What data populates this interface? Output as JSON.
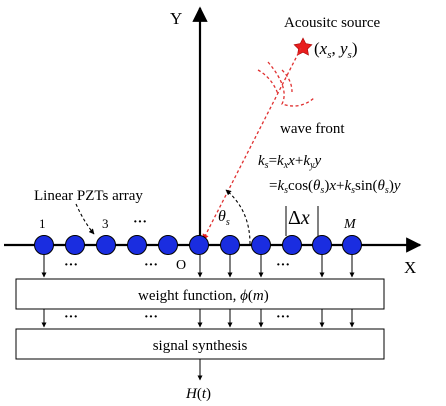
{
  "axes": {
    "x_label": "X",
    "y_label": "Y",
    "origin_label": "O"
  },
  "source": {
    "label": "Acousitc source",
    "coord_open": "(",
    "x": "x",
    "x_sub": "s",
    "sep": ", ",
    "y": "y",
    "y_sub": "s",
    "coord_close": ")"
  },
  "wave_front_label": "wave front",
  "equation": {
    "line1": {
      "k": "k",
      "ks_sub": "s",
      "eq": "=",
      "kx": "k",
      "kx_sub": "x",
      "x": "x",
      "plus": "+",
      "ky": "k",
      "ky_sub": "y",
      "y": "y"
    },
    "line2": {
      "eq": "=",
      "k1": "k",
      "k1_sub": "s",
      "cos": "cos(",
      "theta1": "θ",
      "theta1_sub": "s",
      "close1": ")",
      "x": "x",
      "plus": "+",
      "k2": "k",
      "k2_sub": "s",
      "sin": "sin(",
      "theta2": "θ",
      "theta2_sub": "s",
      "close2": ")",
      "y": "y"
    }
  },
  "angle_label": {
    "theta": "θ",
    "sub": "s"
  },
  "spacing_label": {
    "delta": "Δ",
    "var": "x"
  },
  "array_label": "Linear PZTs array",
  "element_numbers": {
    "first": "1",
    "third": "3",
    "last": "M"
  },
  "ellipsis": "···",
  "weight_box": {
    "text": "weight function, ",
    "phi": "ϕ",
    "open": "(",
    "m": "m",
    "close": ")"
  },
  "synthesis_box": {
    "text": "signal synthesis"
  },
  "output": {
    "h": "H",
    "open": "(",
    "t": "t",
    "close": ")"
  },
  "colors": {
    "pzt_fill": "#1a2de0",
    "source_star": "#e81e1e",
    "wave_dash": "#e03030"
  }
}
